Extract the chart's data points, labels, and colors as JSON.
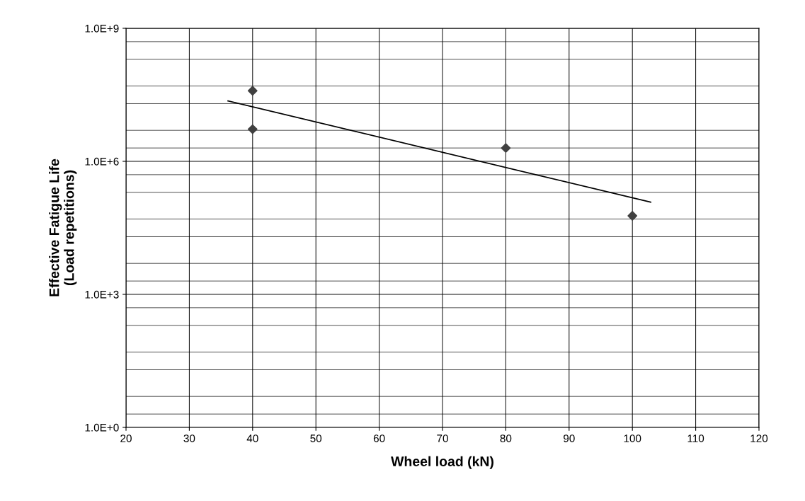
{
  "chart_data": {
    "type": "scatter",
    "xlabel": "Wheel load (kN)",
    "ylabel": "Effective Fatigue Life\n(Load repetitions)",
    "log": "y",
    "grid": true,
    "marker": "diamond",
    "legend": false,
    "series": [
      {
        "color": "#404040",
        "x": [
          40,
          40,
          80,
          100
        ],
        "values": [
          39000000,
          5300000,
          2000000,
          59000
        ]
      },
      {
        "type": "line",
        "color": "#000000",
        "marker": "none",
        "x": [
          36.1,
          102.9
        ],
        "values": [
          23000000,
          120000
        ]
      }
    ],
    "xlim": [
      20,
      120
    ],
    "xticks": [
      20,
      30,
      40,
      50,
      60,
      70,
      80,
      90,
      100,
      110,
      120
    ],
    "ylim": [
      1,
      1000000000
    ],
    "yticks": [
      {
        "value": 1,
        "label": "1.0E+0"
      },
      {
        "value": 1000,
        "label": "1.0E+3"
      },
      {
        "value": 1000000,
        "label": "1.0E+6"
      },
      {
        "value": 1000000000,
        "label": "1.0E+9"
      }
    ]
  }
}
